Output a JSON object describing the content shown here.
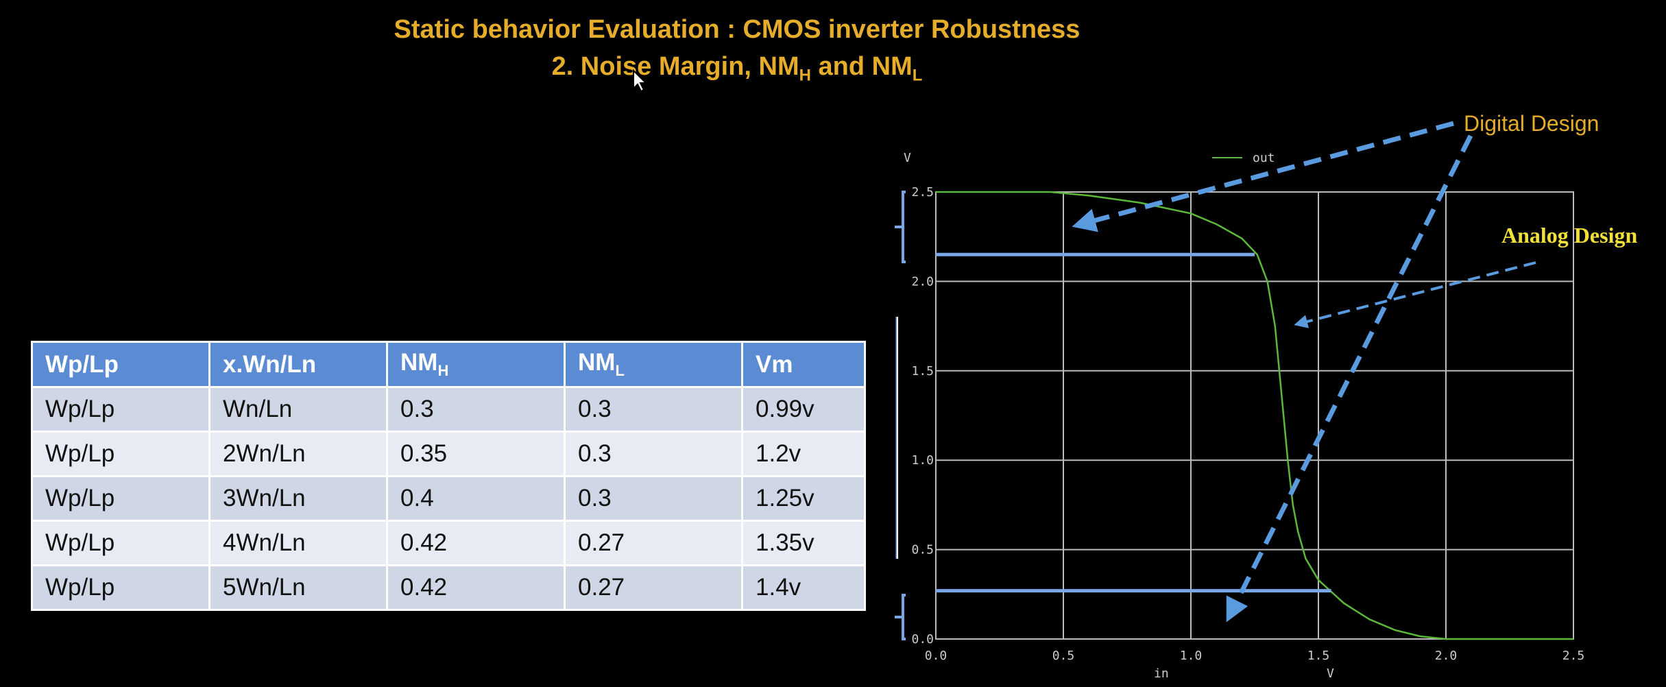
{
  "slide": {
    "title_line1": "Static behavior Evaluation : CMOS inverter Robustness",
    "title_line2_prefix": "2. Noise Margin, NM",
    "title_line2_sub1": "H",
    "title_line2_mid": " and NM",
    "title_line2_sub2": "L"
  },
  "table": {
    "headers": [
      "Wp/Lp",
      "x.Wn/Ln",
      "NM",
      "NM",
      "Vm"
    ],
    "header_subs": [
      "",
      "",
      "H",
      "L",
      ""
    ],
    "rows": [
      [
        "Wp/Lp",
        "Wn/Ln",
        "0.3",
        "0.3",
        "0.99v"
      ],
      [
        "Wp/Lp",
        "2Wn/Ln",
        "0.35",
        "0.3",
        "1.2v"
      ],
      [
        "Wp/Lp",
        "3Wn/Ln",
        "0.4",
        "0.3",
        "1.25v"
      ],
      [
        "Wp/Lp",
        "4Wn/Ln",
        "0.42",
        "0.27",
        "1.35v"
      ],
      [
        "Wp/Lp",
        "5Wn/Ln",
        "0.42",
        "0.27",
        "1.4v"
      ]
    ]
  },
  "annotations": {
    "digital": "Digital Design",
    "analog": "Analog Design"
  },
  "chart_data": {
    "type": "line",
    "y_unit_label": "V",
    "x_label_left": "in",
    "x_label_unit": "V",
    "xlim": [
      0,
      2.5
    ],
    "ylim": [
      0,
      2.5
    ],
    "x_ticks": [
      "0.0",
      "0.5",
      "1.0",
      "1.5",
      "2.0",
      "2.5"
    ],
    "y_ticks": [
      "0.0",
      "0.5",
      "1.0",
      "1.5",
      "2.0",
      "2.5"
    ],
    "grid": true,
    "legend": "top",
    "series": [
      {
        "name": "out",
        "color": "#5cb83a",
        "x": [
          0.0,
          0.45,
          0.6,
          0.8,
          1.0,
          1.1,
          1.2,
          1.26,
          1.3,
          1.33,
          1.36,
          1.38,
          1.4,
          1.42,
          1.45,
          1.5,
          1.6,
          1.7,
          1.8,
          1.9,
          2.0,
          2.5
        ],
        "y": [
          2.5,
          2.5,
          2.48,
          2.44,
          2.38,
          2.32,
          2.24,
          2.15,
          2.0,
          1.75,
          1.3,
          1.0,
          0.75,
          0.6,
          0.45,
          0.33,
          0.2,
          0.11,
          0.05,
          0.015,
          0.0,
          0.0
        ]
      }
    ],
    "markers": {
      "voh_level": 2.15,
      "voh_x": 1.25,
      "vol_level": 0.27,
      "vol_x": 1.55
    }
  },
  "colors": {
    "title": "#e6ad2a",
    "marker_lines": "#7aa6e6",
    "arrows": "#5a9be0",
    "analog_text": "#f2e03a"
  }
}
